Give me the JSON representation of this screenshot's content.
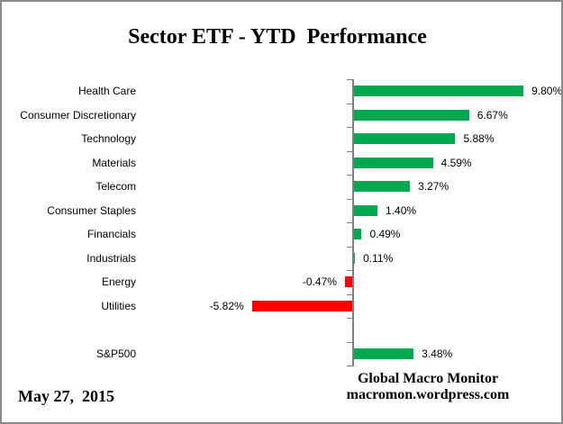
{
  "header": {
    "title": "Sector ETF - YTD  Performance"
  },
  "footer": {
    "date": "May 27,  2015",
    "attribution_line1": "Global Macro Monitor",
    "attribution_line2": "macromon.wordpress.com"
  },
  "chart_data": {
    "type": "bar",
    "orientation": "horizontal",
    "title": "Sector ETF - YTD  Performance",
    "value_format": "percent",
    "xlim": [
      -7.5,
      10.5
    ],
    "grid": false,
    "legend": false,
    "positive_color": "#00A84F",
    "negative_color": "#FF0000",
    "axis_color": "#808080",
    "rows": [
      {
        "label": "Health Care",
        "value": 9.8,
        "display": "9.80%"
      },
      {
        "label": "Consumer Discretionary",
        "value": 6.67,
        "display": "6.67%"
      },
      {
        "label": "Technology",
        "value": 5.88,
        "display": "5.88%"
      },
      {
        "label": "Materials",
        "value": 4.59,
        "display": "4.59%"
      },
      {
        "label": "Telecom",
        "value": 3.27,
        "display": "3.27%"
      },
      {
        "label": "Consumer Staples",
        "value": 1.4,
        "display": "1.40%"
      },
      {
        "label": "Financials",
        "value": 0.49,
        "display": "0.49%"
      },
      {
        "label": "Industrials",
        "value": 0.11,
        "display": "0.11%"
      },
      {
        "label": "Energy",
        "value": -0.47,
        "display": "-0.47%"
      },
      {
        "label": "Utilities",
        "value": -5.82,
        "display": "-5.82%"
      },
      {
        "label": "",
        "value": null,
        "display": ""
      },
      {
        "label": "S&P500",
        "value": 3.48,
        "display": "3.48%"
      }
    ]
  }
}
